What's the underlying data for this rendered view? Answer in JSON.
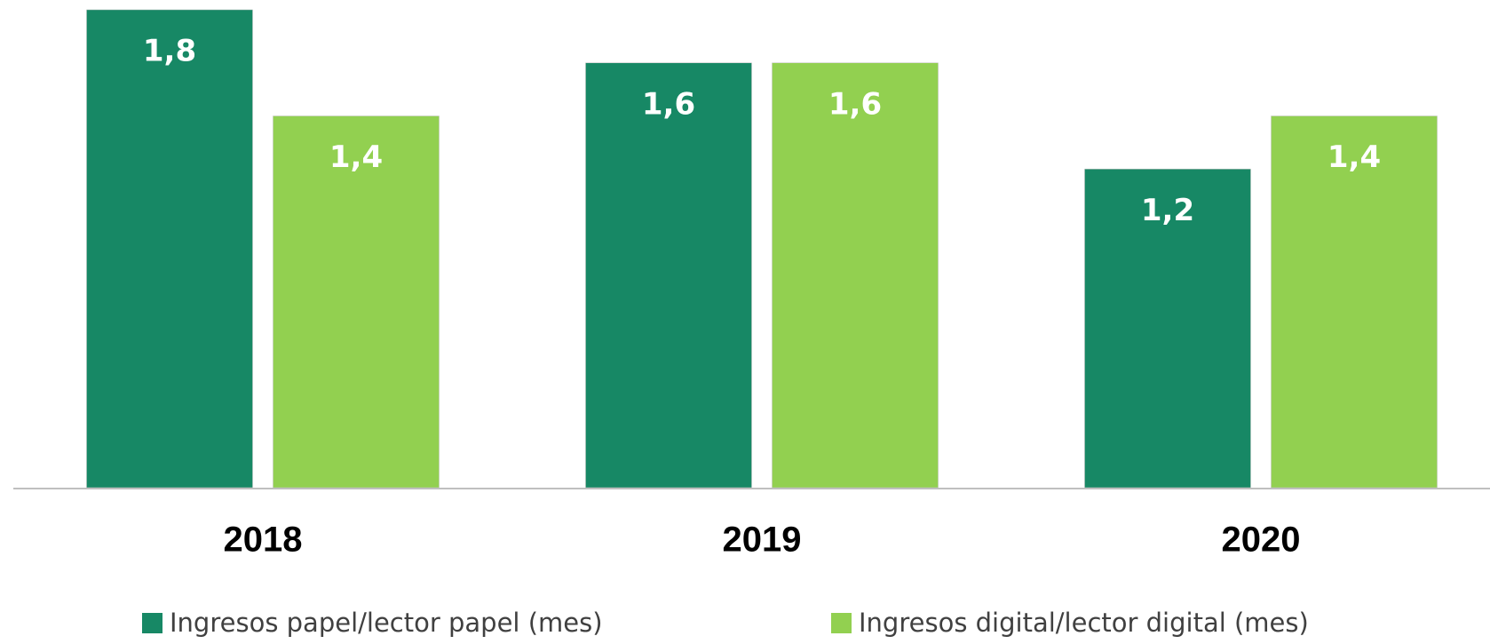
{
  "chart_data": {
    "type": "bar",
    "categories": [
      "2018",
      "2019",
      "2020"
    ],
    "series": [
      {
        "name": "Ingresos papel/lector papel (mes)",
        "color": "#178865",
        "values": [
          1.8,
          1.6,
          1.2
        ],
        "value_labels": [
          "1,8",
          "1,6",
          "1,2"
        ]
      },
      {
        "name": "Ingresos digital/lector digital (mes)",
        "color": "#92d050",
        "values": [
          1.4,
          1.6,
          1.4
        ],
        "value_labels": [
          "1,4",
          "1,6",
          "1,4"
        ]
      }
    ],
    "ylim": [
      0,
      1.8
    ]
  }
}
